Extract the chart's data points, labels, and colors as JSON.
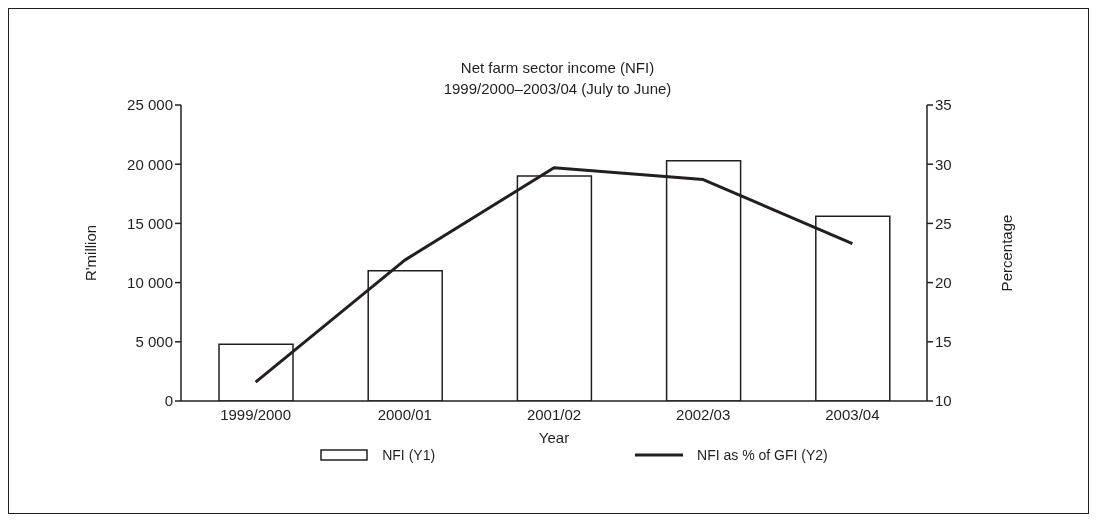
{
  "chart_data": {
    "type": "bar",
    "title": "Net farm sector income (NFI)",
    "subtitle": "1999/2000–2003/04 (July to June)",
    "xlabel": "Year",
    "ylabel": "R'million",
    "y2label": "Percentage",
    "categories": [
      "1999/2000",
      "2000/01",
      "2001/02",
      "2002/03",
      "2003/04"
    ],
    "series": [
      {
        "name": "NFI (Y1)",
        "color": "#ffffff",
        "values": [
          4800,
          11000,
          19000,
          20300,
          15600
        ]
      },
      {
        "name": "NFI as % of GFI (Y2)",
        "type": "line",
        "axis": "y2",
        "color": "#231f20",
        "values": [
          11.6,
          21.9,
          29.7,
          28.7,
          23.3
        ]
      }
    ],
    "ylim": [
      0,
      25000
    ],
    "yticks": [
      {
        "value": 0,
        "label": "0"
      },
      {
        "value": 5000,
        "label": "5 000"
      },
      {
        "value": 10000,
        "label": "10 000"
      },
      {
        "value": 15000,
        "label": "15 000"
      },
      {
        "value": 20000,
        "label": "20 000"
      },
      {
        "value": 25000,
        "label": "25 000"
      }
    ],
    "y2lim": [
      10,
      35
    ],
    "y2ticks": [
      10,
      15,
      20,
      25,
      30,
      35
    ],
    "grid": false,
    "legend": "bottom",
    "marker": "none"
  }
}
